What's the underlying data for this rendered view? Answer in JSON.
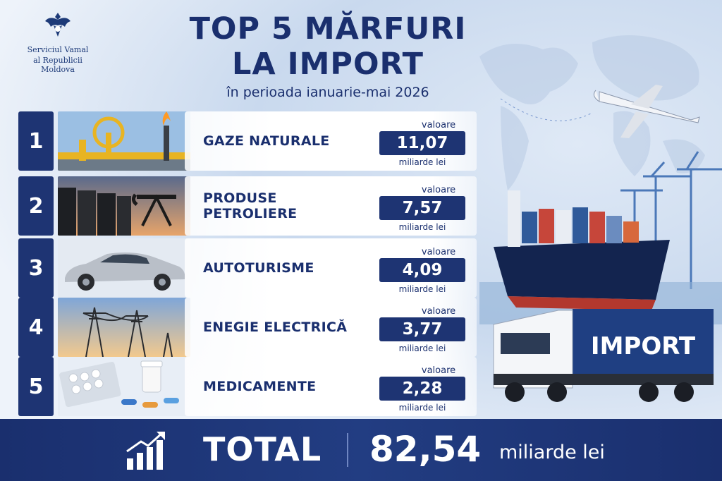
{
  "header": {
    "logo_line1": "Serviciul Vamal",
    "logo_line2": "al Republicii Moldova",
    "title_line1": "TOP 5 MĂRFURI",
    "title_line2": "LA IMPORT",
    "subtitle": "în perioada ianuarie-mai 2026"
  },
  "items": [
    {
      "rank": "1",
      "name": "GAZE NATURALE",
      "value_label": "valoare",
      "value": "11,07",
      "unit": "miliarde lei",
      "image": "gas-pipeline"
    },
    {
      "rank": "2",
      "name": "PRODUSE PETROLIERE",
      "value_label": "valoare",
      "value": "7,57",
      "unit": "miliarde lei",
      "image": "oil-barrels-pump"
    },
    {
      "rank": "3",
      "name": "AUTOTURISME",
      "value_label": "valoare",
      "value": "4,09",
      "unit": "miliarde lei",
      "image": "car"
    },
    {
      "rank": "4",
      "name": "ENEGIE ELECTRICĂ",
      "value_label": "valoare",
      "value": "3,77",
      "unit": "miliarde lei",
      "image": "power-pylons"
    },
    {
      "rank": "5",
      "name": "MEDICAMENTE",
      "value_label": "valoare",
      "value": "2,28",
      "unit": "miliarde lei",
      "image": "pills"
    }
  ],
  "footer": {
    "total_label": "TOTAL",
    "total_value": "82,54",
    "total_unit": "miliarde lei",
    "icon": "growth-chart-icon"
  },
  "scene": {
    "truck_text": "IMPORT"
  },
  "colors": {
    "navy": "#1e3473",
    "title": "#1a2f6e",
    "background": "#eef3fa"
  }
}
